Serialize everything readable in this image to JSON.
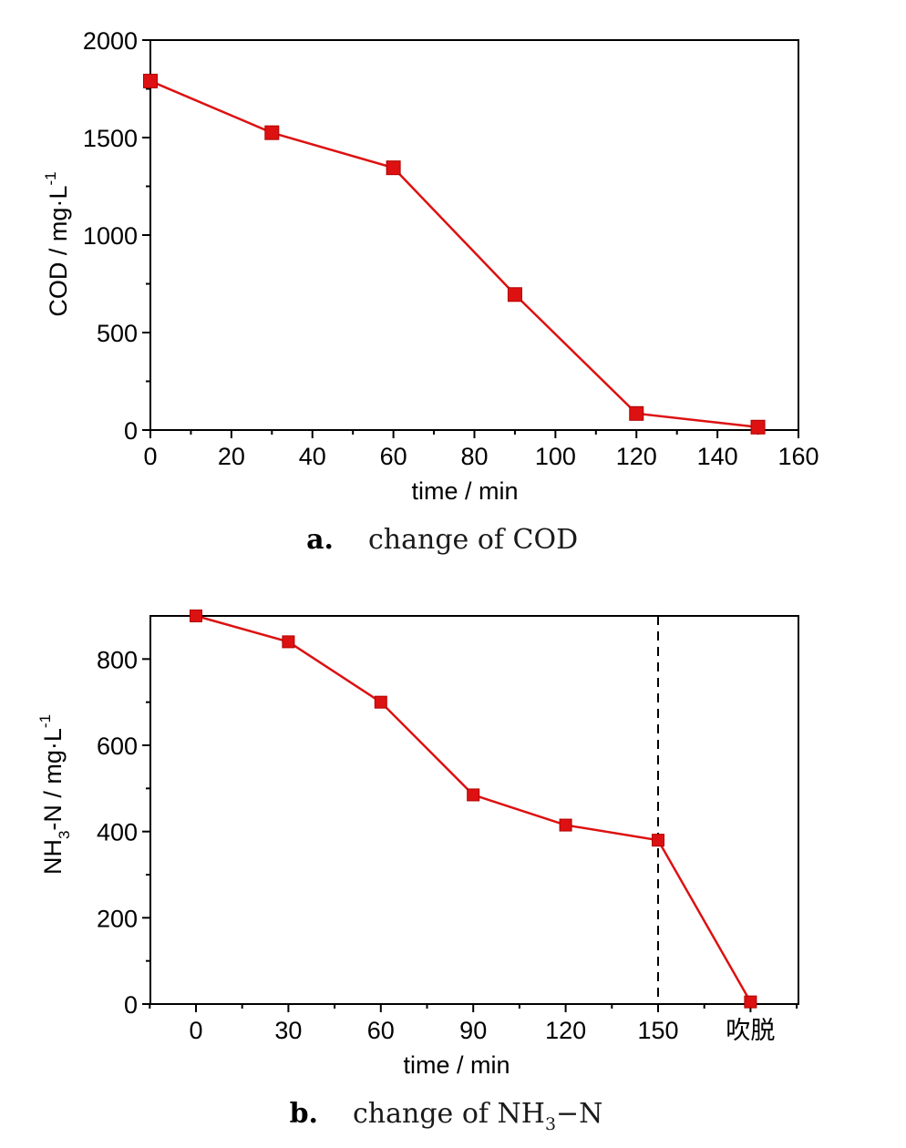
{
  "chart_data": [
    {
      "type": "line",
      "x": [
        0,
        30,
        60,
        90,
        120,
        150
      ],
      "series": [
        {
          "values": [
            1790,
            1525,
            1345,
            695,
            85,
            15
          ]
        }
      ],
      "xlabel": "time / min",
      "ylabel": "COD / mg·L",
      "ylabel_sup": "-1",
      "xlim": [
        0,
        160
      ],
      "ylim": [
        0,
        2000
      ],
      "xticks": [
        0,
        20,
        40,
        60,
        80,
        100,
        120,
        140,
        160
      ],
      "yticks": [
        0,
        500,
        1000,
        1500,
        2000
      ],
      "grid": false,
      "marker": "square",
      "color": "#dd1111",
      "caption_letter": "a.",
      "caption_text": "change of COD"
    },
    {
      "type": "line",
      "categories": [
        "0",
        "30",
        "60",
        "90",
        "120",
        "150",
        "吹脱"
      ],
      "series": [
        {
          "values": [
            900,
            840,
            700,
            485,
            415,
            380,
            5
          ]
        }
      ],
      "xlabel": "time / min",
      "ylabel_parts": [
        "NH",
        "3",
        "-N / mg·L",
        "-1"
      ],
      "ylim": [
        0,
        900
      ],
      "yticks": [
        0,
        200,
        400,
        600,
        800
      ],
      "grid": false,
      "marker": "square",
      "color": "#dd1111",
      "divider_after_category": "150",
      "caption_letter": "b.",
      "caption_parts": [
        "change of NH",
        "3",
        "−N"
      ]
    }
  ]
}
